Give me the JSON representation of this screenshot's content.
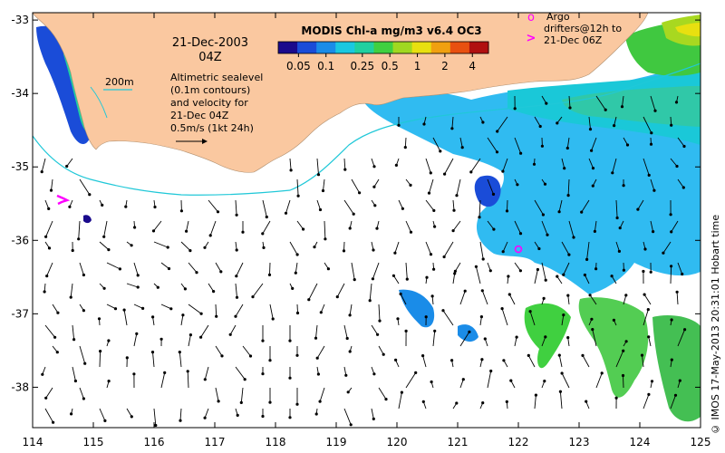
{
  "product_title": "MODIS Chl-a mg/m3 v6.4 OC3",
  "date_line1": "21-Dec-2003",
  "date_line2": "04Z",
  "sealevel_note": [
    "Altimetric sealevel",
    "(0.1m contours)",
    "and velocity for",
    "21-Dec 04Z"
  ],
  "velocity_scale_label": "0.5m/s (1kt 24h)",
  "depth_contour_label": "200m",
  "argo_legend": [
    "Argo",
    "drifters@12h to",
    "21-Dec 06Z"
  ],
  "argo_marker_symbol": "o",
  "argo_track_symbol": ">",
  "credit": "© IMOS 17-May-2013 20:31:01 Hobart time",
  "colorbar": {
    "ticks": [
      {
        "label": "0.05",
        "value": 0.05
      },
      {
        "label": "0.1",
        "value": 0.1
      },
      {
        "label": "0.25",
        "value": 0.25
      },
      {
        "label": "0.5",
        "value": 0.5
      },
      {
        "label": "1",
        "value": 1
      },
      {
        "label": "2",
        "value": 2
      },
      {
        "label": "4",
        "value": 4
      }
    ],
    "colors": [
      "#1a0a8c",
      "#1a4cd8",
      "#1a8ce8",
      "#1ac8e0",
      "#20d0a0",
      "#40d040",
      "#a0d820",
      "#e8e010",
      "#f0a010",
      "#e85010",
      "#b01010"
    ]
  },
  "axes": {
    "lon_ticks": [
      "114",
      "115",
      "116",
      "117",
      "118",
      "119",
      "120",
      "121",
      "122",
      "123",
      "124",
      "125"
    ],
    "lat_ticks": [
      "-33",
      "-34",
      "-35",
      "-36",
      "-37",
      "-38"
    ],
    "lon_range": [
      114,
      125
    ],
    "lat_range": [
      -38.55,
      -32.9
    ]
  },
  "colors": {
    "land": "#fac8a0",
    "contour": "#20c8d8",
    "argo": "#ff00ff",
    "arrow": "#000000"
  },
  "argo_float": {
    "lon": 122.0,
    "lat": -36.12
  }
}
